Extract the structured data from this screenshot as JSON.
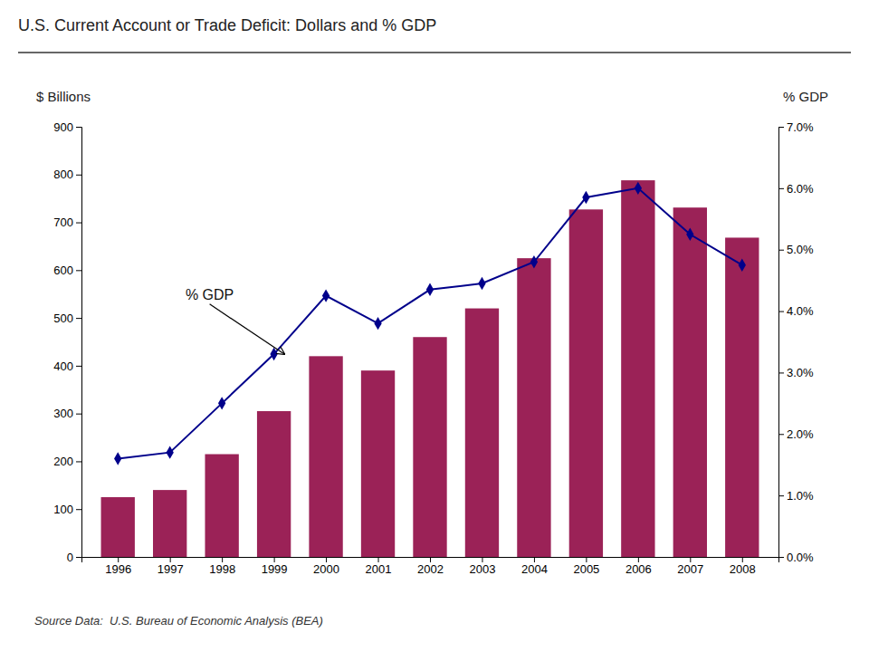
{
  "chart_data": {
    "type": "bar",
    "title": "U.S. Current Account or Trade Deficit: Dollars and % GDP",
    "ylabel": "$ Billions",
    "y2label": "% GDP",
    "source": "Source Data:  U.S. Bureau of Economic Analysis (BEA)",
    "x": [
      1996,
      1997,
      1998,
      1999,
      2000,
      2001,
      2002,
      2003,
      2004,
      2005,
      2006,
      2007,
      2008
    ],
    "series": [
      {
        "type": "bar",
        "color": "#9B2257",
        "values": [
          125,
          140,
          215,
          305,
          420,
          390,
          460,
          520,
          625,
          727,
          788,
          731,
          668
        ]
      },
      {
        "type": "line",
        "axis": "y2",
        "color": "#00008B",
        "marker": "diamond",
        "line_style": "solid",
        "values": [
          1.6,
          1.7,
          2.5,
          3.3,
          4.25,
          3.8,
          4.35,
          4.45,
          4.8,
          5.85,
          6.0,
          5.25,
          4.75
        ]
      }
    ],
    "xlim": [
      1995.3,
      2008.7
    ],
    "xticks": [
      1996,
      1997,
      1998,
      1999,
      2000,
      2001,
      2002,
      2003,
      2004,
      2005,
      2006,
      2007,
      2008
    ],
    "ylim": [
      0,
      900
    ],
    "yticks": [
      0,
      100,
      200,
      300,
      400,
      500,
      600,
      700,
      800,
      900
    ],
    "y2lim": [
      0,
      7.0
    ],
    "y2ticks": [
      {
        "value": 0.0,
        "label": "0.0%"
      },
      {
        "value": 1.0,
        "label": "1.0%"
      },
      {
        "value": 2.0,
        "label": "2.0%"
      },
      {
        "value": 3.0,
        "label": "3.0%"
      },
      {
        "value": 4.0,
        "label": "4.0%"
      },
      {
        "value": 5.0,
        "label": "5.0%"
      },
      {
        "value": 6.0,
        "label": "6.0%"
      },
      {
        "value": 7.0,
        "label": "7.0%"
      }
    ],
    "annotations": [
      {
        "text": "% GDP",
        "x": 1999.2,
        "y": 3.3,
        "axis": "y2",
        "text_x": 1997.3,
        "text_y": 4.25
      }
    ],
    "grid": false
  }
}
